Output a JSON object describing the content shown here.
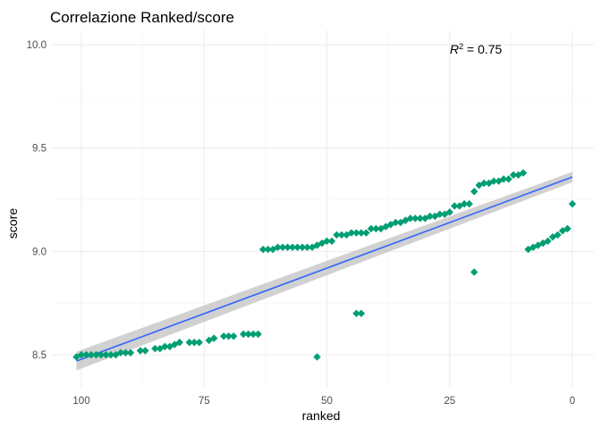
{
  "chart_data": {
    "type": "scatter",
    "title": "Correlazione Ranked/score",
    "xlabel": "ranked",
    "ylabel": "score",
    "x_reversed": true,
    "xlim": [
      0,
      100
    ],
    "ylim": [
      8.5,
      10.0
    ],
    "x_ticks": [
      "100",
      "75",
      "50",
      "25",
      "0"
    ],
    "y_ticks": [
      "8.5",
      "9.0",
      "9.5",
      "10.0"
    ],
    "grid": true,
    "point_color": "#009E73",
    "line_color": "#3366FF",
    "band_color": "#BDBDBD",
    "annotation": {
      "base": "R",
      "superscript": "2",
      "rest": " = 0.75"
    },
    "regression": {
      "x": [
        101,
        0
      ],
      "y": [
        8.47,
        9.36
      ],
      "band_halfwidth": [
        0.045,
        0.025
      ]
    },
    "points": {
      "x": [
        101,
        100,
        99,
        98,
        97,
        96,
        95,
        94,
        93,
        92,
        91,
        90,
        88,
        87,
        85,
        84,
        83,
        82,
        81,
        80,
        78,
        77,
        76,
        74,
        73,
        71,
        70,
        69,
        67,
        66,
        65,
        64,
        63,
        62,
        61,
        60,
        59,
        58,
        57,
        56,
        55,
        54,
        53,
        52,
        51,
        50,
        49,
        48,
        47,
        46,
        45,
        44,
        43,
        42,
        41,
        40,
        39,
        38,
        37,
        36,
        35,
        34,
        33,
        32,
        31,
        30,
        29,
        28,
        27,
        26,
        25,
        24,
        23,
        22,
        21,
        20,
        19,
        18,
        17,
        16,
        15,
        14,
        13,
        12,
        11,
        10,
        9,
        8,
        7,
        6,
        5,
        4,
        3,
        2,
        1,
        0,
        52,
        44,
        43,
        20
      ],
      "y": [
        8.49,
        8.5,
        8.5,
        8.5,
        8.5,
        8.5,
        8.5,
        8.5,
        8.5,
        8.51,
        8.51,
        8.51,
        8.52,
        8.52,
        8.53,
        8.53,
        8.54,
        8.54,
        8.55,
        8.56,
        8.56,
        8.56,
        8.56,
        8.57,
        8.58,
        8.59,
        8.59,
        8.59,
        8.6,
        8.6,
        8.6,
        8.6,
        9.01,
        9.01,
        9.01,
        9.02,
        9.02,
        9.02,
        9.02,
        9.02,
        9.02,
        9.02,
        9.02,
        9.03,
        9.04,
        9.05,
        9.05,
        9.08,
        9.08,
        9.08,
        9.09,
        9.09,
        9.09,
        9.09,
        9.11,
        9.11,
        9.11,
        9.12,
        9.13,
        9.14,
        9.14,
        9.15,
        9.16,
        9.16,
        9.16,
        9.16,
        9.17,
        9.17,
        9.18,
        9.18,
        9.19,
        9.22,
        9.22,
        9.23,
        9.23,
        9.29,
        9.32,
        9.33,
        9.33,
        9.34,
        9.34,
        9.35,
        9.35,
        9.37,
        9.37,
        9.38,
        9.01,
        9.02,
        9.03,
        9.04,
        9.05,
        9.07,
        9.08,
        9.1,
        9.11,
        9.23,
        8.49,
        8.7,
        8.7,
        8.9
      ]
    }
  }
}
